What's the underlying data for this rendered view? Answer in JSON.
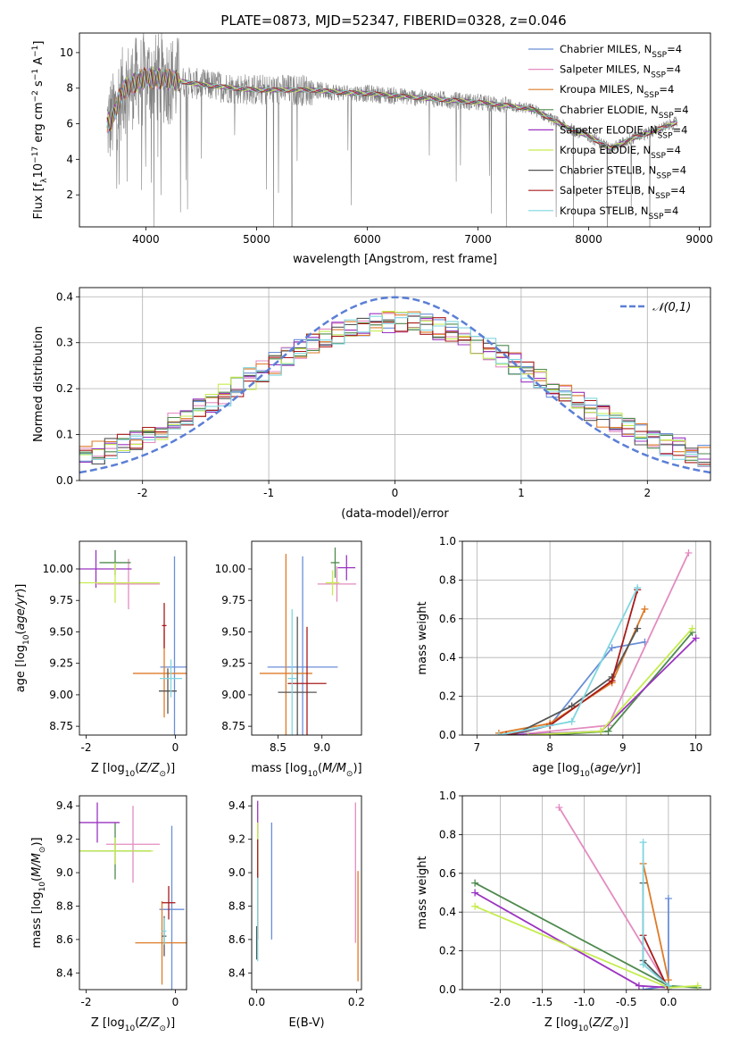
{
  "figure": {
    "title": "PLATE=0873, MJD=52347, FIBERID=0328, z=0.046"
  },
  "models": [
    {
      "name": "Chabrier MILES",
      "imf": "Chabrier",
      "lib": "MILES",
      "color": "#6A8FD8"
    },
    {
      "name": "Salpeter MILES",
      "imf": "Salpeter",
      "lib": "MILES",
      "color": "#E38CC0"
    },
    {
      "name": "Kroupa MILES",
      "imf": "Kroupa",
      "lib": "MILES",
      "color": "#DE7B28"
    },
    {
      "name": "Chabrier ELODIE",
      "imf": "Chabrier",
      "lib": "ELODIE",
      "color": "#4E8A4E"
    },
    {
      "name": "Salpeter ELODIE",
      "imf": "Salpeter",
      "lib": "ELODIE",
      "color": "#9B34C1"
    },
    {
      "name": "Kroupa ELODIE",
      "imf": "Kroupa",
      "lib": "ELODIE",
      "color": "#C6EC4F"
    },
    {
      "name": "Chabrier STELIB",
      "imf": "Chabrier",
      "lib": "STELIB",
      "color": "#555555"
    },
    {
      "name": "Salpeter STELIB",
      "imf": "Salpeter",
      "lib": "STELIB",
      "color": "#A81B1B"
    },
    {
      "name": "Kroupa STELIB",
      "imf": "Kroupa",
      "lib": "STELIB",
      "color": "#7FD6E0"
    }
  ],
  "chart_data": [
    {
      "type": "line",
      "title": "PLATE=0873, MJD=52347, FIBERID=0328, z=0.046",
      "xlabel": "wavelength [Angstrom, rest frame]",
      "ylabel": "Flux [f_λ 10^-17 erg cm^-2 s^-1 A^-1]",
      "xlim": [
        3400,
        9100
      ],
      "ylim": [
        0.2,
        11.1
      ],
      "xticks": [
        4000,
        5000,
        6000,
        7000,
        8000,
        9000
      ],
      "yticks": [
        2,
        4,
        6,
        8,
        10
      ],
      "legend_position": "top-right",
      "legend_suffix": "N_SSP=4",
      "data_color": "#808080",
      "continuum": {
        "x": [
          3650,
          3700,
          3750,
          3800,
          3900,
          4000,
          4200,
          4500,
          4800,
          5000,
          5200,
          5500,
          5800,
          6000,
          6300,
          6600,
          6800,
          7000,
          7300,
          7500,
          7800,
          8000,
          8200,
          8400,
          8600,
          8800
        ],
        "y": [
          6.0,
          6.3,
          7.2,
          7.9,
          8.3,
          8.6,
          8.5,
          8.2,
          8.0,
          7.9,
          7.9,
          7.9,
          7.75,
          7.7,
          7.55,
          7.4,
          7.3,
          7.2,
          7.0,
          6.8,
          5.8,
          5.3,
          4.6,
          5.2,
          5.6,
          6.1
        ]
      }
    },
    {
      "type": "bar",
      "xlabel": "(data-model)/error",
      "ylabel": "Normed distribution",
      "xlim": [
        -2.5,
        2.5
      ],
      "ylim": [
        0,
        0.42
      ],
      "xticks": [
        -2,
        -1,
        0,
        1,
        2
      ],
      "yticks": [
        0.0,
        0.1,
        0.2,
        0.3,
        0.4
      ],
      "grid": true,
      "legend_position": "top-right",
      "reference_curve": {
        "name": "𝒩(0,1)",
        "mean": 0,
        "sigma": 1,
        "color": "#5B7FD6"
      }
    },
    {
      "type": "scatter",
      "xlabel": "Z [log10(Z/Z⊙)]",
      "ylabel": "age [log10(age/yr)]",
      "xlim": [
        -2.15,
        0.25
      ],
      "ylim": [
        8.68,
        10.22
      ],
      "xticks": [
        -2,
        0
      ],
      "yticks": [
        8.75,
        9.0,
        9.25,
        9.5,
        9.75,
        10.0
      ],
      "points": [
        {
          "model": 0,
          "x": -0.02,
          "y": 9.22,
          "xerr": 0.32,
          "yerr": 0.88
        },
        {
          "model": 1,
          "x": -1.05,
          "y": 9.88,
          "xerr": 0.7,
          "yerr": 0.2
        },
        {
          "model": 2,
          "x": -0.25,
          "y": 9.17,
          "xerr": 0.7,
          "yerr": 0.35
        },
        {
          "model": 3,
          "x": -1.35,
          "y": 10.05,
          "xerr": 0.35,
          "yerr": 0.1
        },
        {
          "model": 4,
          "x": -1.78,
          "y": 10.0,
          "xerr": 0.8,
          "yerr": 0.15
        },
        {
          "model": 5,
          "x": -1.35,
          "y": 9.89,
          "xerr": 1.0,
          "yerr": 0.16
        },
        {
          "model": 6,
          "x": -0.17,
          "y": 9.03,
          "xerr": 0.2,
          "yerr": 0.18
        },
        {
          "model": 7,
          "x": -0.25,
          "y": 9.55,
          "xerr": 0.05,
          "yerr": 0.18
        },
        {
          "model": 8,
          "x": -0.1,
          "y": 9.13,
          "xerr": 0.25,
          "yerr": 0.15
        }
      ]
    },
    {
      "type": "scatter",
      "xlabel": "mass [log10(M/M⊙)]",
      "ylabel": "",
      "xlim": [
        8.2,
        9.45
      ],
      "ylim": [
        8.68,
        10.22
      ],
      "xticks": [
        8.5,
        9.0
      ],
      "yticks": [
        8.75,
        9.0,
        9.25,
        9.5,
        9.75,
        10.0
      ],
      "points": [
        {
          "model": 0,
          "x": 8.78,
          "y": 9.22,
          "xerr": 0.4,
          "yerr": 0.88
        },
        {
          "model": 1,
          "x": 9.17,
          "y": 9.88,
          "xerr": 0.22,
          "yerr": 0.14
        },
        {
          "model": 2,
          "x": 8.59,
          "y": 9.17,
          "xerr": 0.3,
          "yerr": 0.95
        },
        {
          "model": 3,
          "x": 9.15,
          "y": 10.05,
          "xerr": 0.05,
          "yerr": 0.12
        },
        {
          "model": 4,
          "x": 9.28,
          "y": 10.01,
          "xerr": 0.1,
          "yerr": 0.1
        },
        {
          "model": 5,
          "x": 9.12,
          "y": 9.89,
          "xerr": 0.08,
          "yerr": 0.1
        },
        {
          "model": 6,
          "x": 8.72,
          "y": 9.02,
          "xerr": 0.22,
          "yerr": 0.6
        },
        {
          "model": 7,
          "x": 8.83,
          "y": 9.09,
          "xerr": 0.22,
          "yerr": 0.45
        },
        {
          "model": 8,
          "x": 8.66,
          "y": 9.13,
          "xerr": 0.05,
          "yerr": 0.55
        }
      ]
    },
    {
      "type": "line",
      "xlabel": "age [log10(age/yr)]",
      "ylabel": "mass weight",
      "xlim": [
        6.8,
        10.2
      ],
      "ylim": [
        0,
        1
      ],
      "xticks": [
        7,
        8,
        9,
        10
      ],
      "yticks": [
        0.0,
        0.2,
        0.4,
        0.6,
        0.8,
        1.0
      ],
      "grid": true,
      "series": [
        {
          "model": 0,
          "x": [
            7.5,
            8.0,
            8.85,
            9.3
          ],
          "y": [
            0.0,
            0.05,
            0.45,
            0.48
          ]
        },
        {
          "model": 1,
          "x": [
            7.5,
            8.8,
            9.9
          ],
          "y": [
            0.0,
            0.05,
            0.94
          ]
        },
        {
          "model": 2,
          "x": [
            7.3,
            8.0,
            8.85,
            9.3
          ],
          "y": [
            0.01,
            0.06,
            0.27,
            0.65
          ]
        },
        {
          "model": 3,
          "x": [
            8.0,
            8.8,
            9.95
          ],
          "y": [
            0.0,
            0.02,
            0.53
          ]
        },
        {
          "model": 4,
          "x": [
            7.5,
            8.7,
            10.0
          ],
          "y": [
            0.0,
            0.02,
            0.5
          ]
        },
        {
          "model": 5,
          "x": [
            7.7,
            8.7,
            9.95
          ],
          "y": [
            0.0,
            0.02,
            0.55
          ]
        },
        {
          "model": 6,
          "x": [
            7.5,
            8.3,
            8.85,
            9.2
          ],
          "y": [
            0.0,
            0.15,
            0.3,
            0.55
          ]
        },
        {
          "model": 7,
          "x": [
            7.4,
            8.0,
            8.85,
            9.2
          ],
          "y": [
            0.0,
            0.05,
            0.28,
            0.75
          ]
        },
        {
          "model": 8,
          "x": [
            7.3,
            8.3,
            9.2
          ],
          "y": [
            0.0,
            0.07,
            0.76
          ]
        }
      ]
    },
    {
      "type": "scatter",
      "xlabel": "Z [log10(Z/Z⊙)]",
      "ylabel": "mass [log10(M/M⊙)]",
      "xlim": [
        -2.15,
        0.25
      ],
      "ylim": [
        8.3,
        9.46
      ],
      "xticks": [
        -2,
        0
      ],
      "yticks": [
        8.4,
        8.6,
        8.8,
        9.0,
        9.2,
        9.4
      ],
      "points": [
        {
          "model": 0,
          "x": -0.08,
          "y": 8.78,
          "xerr": 0.28,
          "yerr": 0.5
        },
        {
          "model": 1,
          "x": -0.95,
          "y": 9.17,
          "xerr": 0.6,
          "yerr": 0.23
        },
        {
          "model": 2,
          "x": -0.3,
          "y": 8.58,
          "xerr": 0.6,
          "yerr": 0.25
        },
        {
          "model": 3,
          "x": -1.35,
          "y": 9.13,
          "xerr": 0.8,
          "yerr": 0.17
        },
        {
          "model": 4,
          "x": -1.75,
          "y": 9.3,
          "xerr": 0.5,
          "yerr": 0.12
        },
        {
          "model": 5,
          "x": -1.35,
          "y": 9.13,
          "xerr": 0.85,
          "yerr": 0.08
        },
        {
          "model": 6,
          "x": -0.25,
          "y": 8.62,
          "xerr": 0.05,
          "yerr": 0.12
        },
        {
          "model": 7,
          "x": -0.15,
          "y": 8.82,
          "xerr": 0.15,
          "yerr": 0.1
        },
        {
          "model": 8,
          "x": -0.25,
          "y": 8.65,
          "xerr": 0.05,
          "yerr": 0.08
        }
      ]
    },
    {
      "type": "scatter",
      "xlabel": "E(B-V)",
      "ylabel": "",
      "xlim": [
        -0.01,
        0.21
      ],
      "ylim": [
        8.3,
        9.46
      ],
      "xticks": [
        0.0,
        0.2
      ],
      "yticks": [
        8.4,
        8.6,
        8.8,
        9.0,
        9.2,
        9.4
      ],
      "points": [
        {
          "model": 0,
          "x": 0.03,
          "y": 8.95,
          "xerr": 0,
          "yerr": 0.35
        },
        {
          "model": 1,
          "x": 0.198,
          "y": 9.0,
          "xerr": 0,
          "yerr": 0.42
        },
        {
          "model": 2,
          "x": 0.203,
          "y": 8.68,
          "xerr": 0,
          "yerr": 0.33
        },
        {
          "model": 3,
          "x": 0.002,
          "y": 9.13,
          "xerr": 0,
          "yerr": 0.17
        },
        {
          "model": 4,
          "x": 0.002,
          "y": 9.33,
          "xerr": 0,
          "yerr": 0.1
        },
        {
          "model": 5,
          "x": 0.002,
          "y": 9.15,
          "xerr": 0,
          "yerr": 0.15
        },
        {
          "model": 6,
          "x": 0.0,
          "y": 8.58,
          "xerr": 0,
          "yerr": 0.1
        },
        {
          "model": 7,
          "x": 0.002,
          "y": 8.9,
          "xerr": 0,
          "yerr": 0.3
        },
        {
          "model": 8,
          "x": 0.002,
          "y": 8.72,
          "xerr": 0,
          "yerr": 0.25
        }
      ]
    },
    {
      "type": "line",
      "xlabel": "Z [log10(Z/Z⊙)]",
      "ylabel": "mass weight",
      "xlim": [
        -2.45,
        0.5
      ],
      "ylim": [
        0,
        1
      ],
      "xticks": [
        -2.0,
        -1.5,
        -1.0,
        -0.5,
        0.0
      ],
      "yticks": [
        0.0,
        0.2,
        0.4,
        0.6,
        0.8,
        1.0
      ],
      "grid": true,
      "series": [
        {
          "model": 0,
          "x": [
            -0.3,
            0.0,
            0.0
          ],
          "y": [
            0.0,
            0.02,
            0.47
          ]
        },
        {
          "model": 1,
          "x": [
            -1.3,
            0.0
          ],
          "y": [
            0.94,
            0.01
          ]
        },
        {
          "model": 2,
          "x": [
            -0.3,
            0.0
          ],
          "y": [
            0.65,
            0.05
          ]
        },
        {
          "model": 3,
          "x": [
            -2.3,
            0.0,
            0.35
          ],
          "y": [
            0.55,
            0.02,
            0.01
          ]
        },
        {
          "model": 4,
          "x": [
            -2.3,
            -0.35,
            0.0
          ],
          "y": [
            0.5,
            0.02,
            0.01
          ]
        },
        {
          "model": 5,
          "x": [
            -2.3,
            0.0,
            0.35
          ],
          "y": [
            0.43,
            0.01,
            0.02
          ]
        },
        {
          "model": 6,
          "x": [
            -0.3,
            -0.3,
            0.0
          ],
          "y": [
            0.55,
            0.15,
            0.02
          ]
        },
        {
          "model": 7,
          "x": [
            -0.3,
            0.0
          ],
          "y": [
            0.28,
            0.0
          ]
        },
        {
          "model": 8,
          "x": [
            -0.3,
            -0.3,
            0.0
          ],
          "y": [
            0.76,
            0.13,
            0.02
          ]
        }
      ]
    }
  ]
}
